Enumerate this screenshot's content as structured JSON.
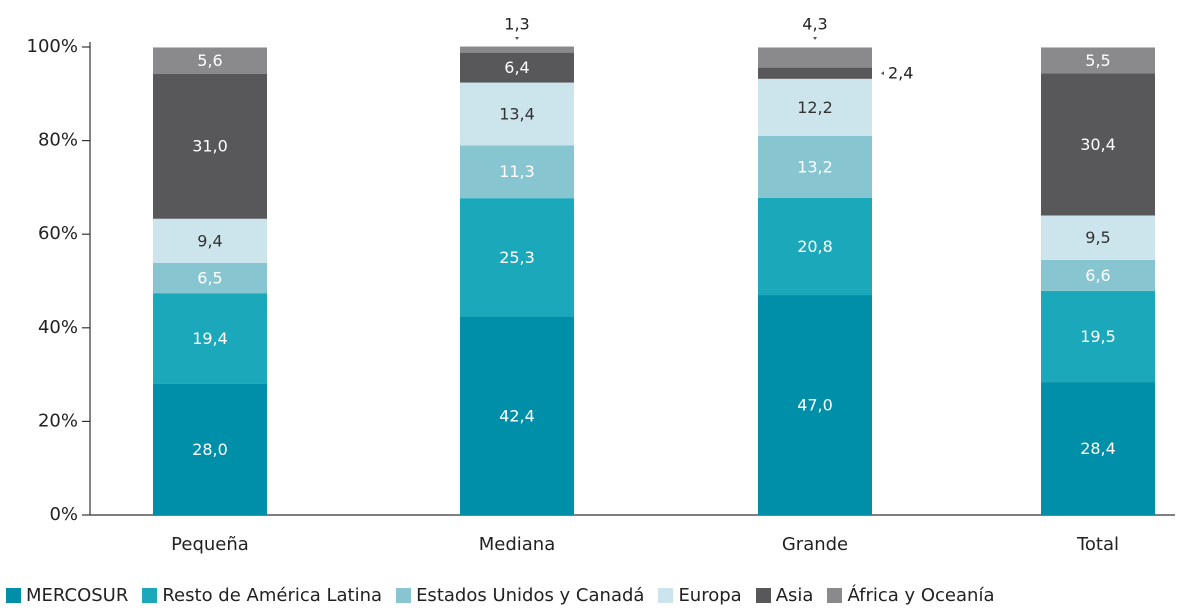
{
  "chart_data": {
    "type": "stacked_bar",
    "categories": [
      "Pequeña",
      "Mediana",
      "Grande",
      "Total"
    ],
    "ylim": [
      0,
      100
    ],
    "yticks": [
      {
        "value": 0,
        "label": "0%"
      },
      {
        "value": 20,
        "label": "20%"
      },
      {
        "value": 40,
        "label": "40%"
      },
      {
        "value": 60,
        "label": "60%"
      },
      {
        "value": 80,
        "label": "80%"
      },
      {
        "value": 100,
        "label": "100%"
      }
    ],
    "series": [
      {
        "name": "MERCOSUR",
        "color": "#008fa8",
        "values": [
          28.0,
          42.4,
          47.0,
          28.4
        ],
        "value_labels": [
          "28,0",
          "42,4",
          "47,0",
          "28,4"
        ]
      },
      {
        "name": "Resto de América Latina",
        "color": "#1ba8bb",
        "values": [
          19.4,
          25.3,
          20.8,
          19.5
        ],
        "value_labels": [
          "19,4",
          "25,3",
          "20,8",
          "19,5"
        ]
      },
      {
        "name": "Estados Unidos y Canadá",
        "color": "#87c5d0",
        "values": [
          6.5,
          11.3,
          13.2,
          6.6
        ],
        "value_labels": [
          "6,5",
          "11,3",
          "13,2",
          "6,6"
        ]
      },
      {
        "name": "Europa",
        "color": "#cce4eb",
        "values": [
          9.4,
          13.4,
          12.2,
          9.5
        ],
        "value_labels": [
          "9,4",
          "13,4",
          "12,2",
          "9,5"
        ]
      },
      {
        "name": "Asia",
        "color": "#58585a",
        "values": [
          31.0,
          6.4,
          2.4,
          30.4
        ],
        "value_labels": [
          "31,0",
          "6,4",
          "2,4",
          "30,4"
        ]
      },
      {
        "name": "África y Oceanía",
        "color": "#8a8a8c",
        "values": [
          5.6,
          1.3,
          4.3,
          5.5
        ],
        "value_labels": [
          "5,6",
          "1,3",
          "4,3",
          "5,5"
        ]
      }
    ]
  }
}
